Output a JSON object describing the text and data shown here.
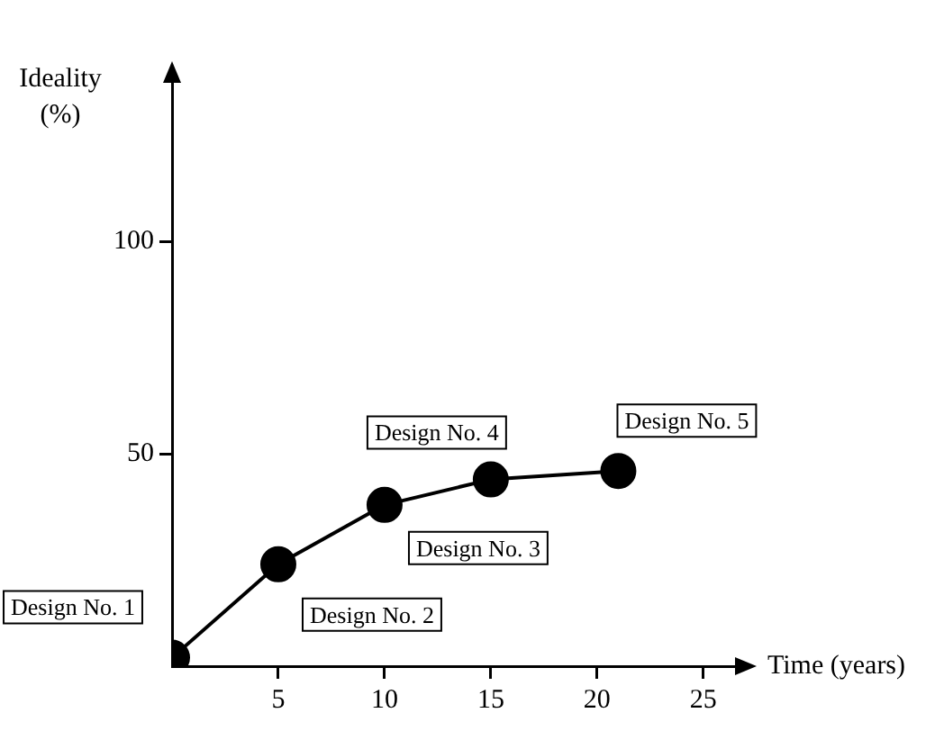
{
  "chart_data": {
    "type": "line",
    "xlabel": "Time (years)",
    "ylabel": "Ideality\n(%)",
    "x": [
      0,
      5,
      10,
      15,
      21
    ],
    "values": [
      2,
      24,
      38,
      44,
      46
    ],
    "color": "#000000",
    "marker": "circle",
    "line_style": "solid",
    "grid": false,
    "legend": false,
    "xlim": [
      0,
      27
    ],
    "xticks": [
      5,
      10,
      15,
      20,
      25
    ],
    "ylim": [
      0,
      140
    ],
    "yticks": [
      50,
      100
    ],
    "annotations": [
      {
        "text": "Design No. 1",
        "x": 0,
        "y": 2
      },
      {
        "text": "Design No. 2",
        "x": 5,
        "y": 24
      },
      {
        "text": "Design No. 3",
        "x": 10,
        "y": 38
      },
      {
        "text": "Design No. 4",
        "x": 15,
        "y": 44
      },
      {
        "text": "Design No. 5",
        "x": 21,
        "y": 46
      }
    ]
  }
}
